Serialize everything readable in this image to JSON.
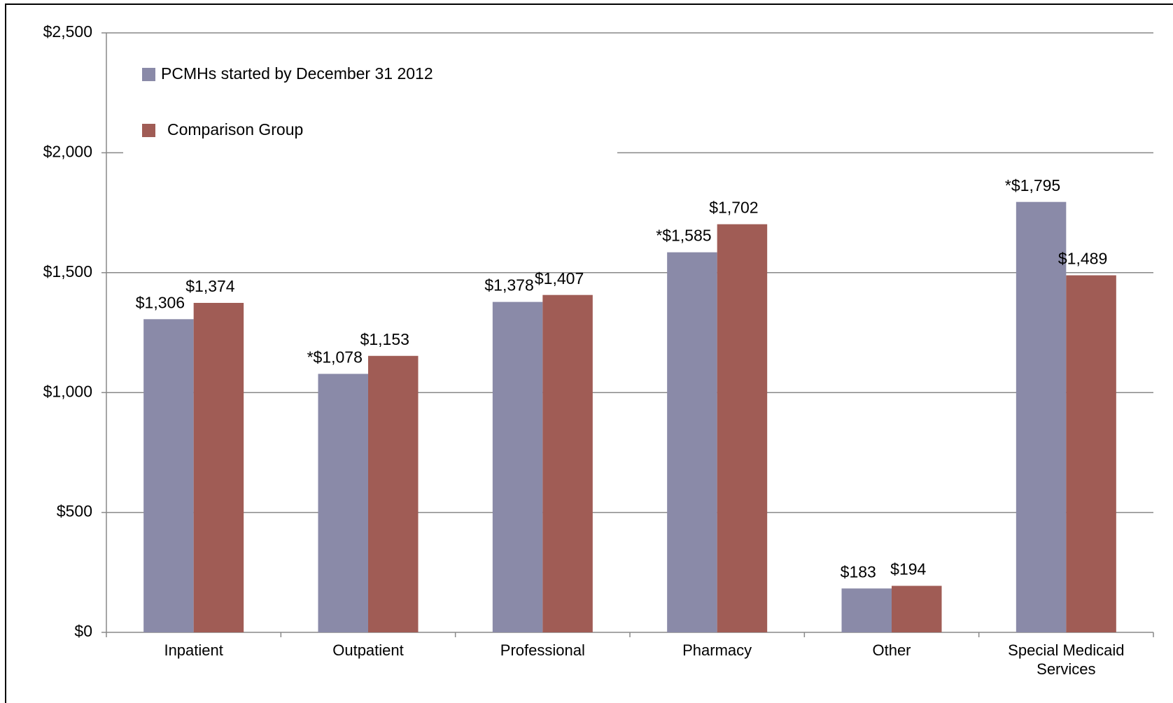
{
  "chart_data": {
    "type": "bar",
    "categories": [
      "Inpatient",
      "Outpatient",
      "Professional",
      "Pharmacy",
      "Other",
      "Special Medicaid Services"
    ],
    "series": [
      {
        "name": "PCMHs started by December 31 2012",
        "color": "#8a8aa8",
        "values": [
          1306,
          1078,
          1378,
          1585,
          183,
          1795
        ],
        "value_labels": [
          "$1,306",
          "*$1,078",
          "$1,378",
          "*$1,585",
          "$183",
          "*$1,795"
        ]
      },
      {
        "name": "Comparison Group",
        "color": "#a05c55",
        "values": [
          1374,
          1153,
          1407,
          1702,
          194,
          1489
        ],
        "value_labels": [
          "$1,374",
          "$1,153",
          "$1,407",
          "$1,702",
          "$194",
          "$1,489"
        ]
      }
    ],
    "ylim": [
      0,
      2500
    ],
    "yticks": [
      {
        "value": 0,
        "label": "$0"
      },
      {
        "value": 500,
        "label": "$500"
      },
      {
        "value": 1000,
        "label": "$1,000"
      },
      {
        "value": 1500,
        "label": "$1,500"
      },
      {
        "value": 2000,
        "label": "$2,000"
      },
      {
        "value": 2500,
        "label": "$2,500"
      }
    ],
    "grid": true,
    "legend": "top-left"
  }
}
